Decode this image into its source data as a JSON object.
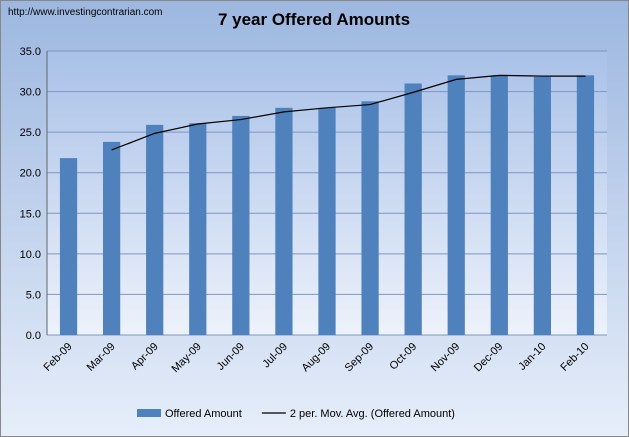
{
  "watermark": "http://www.investingcontrarian.com",
  "chart_data": {
    "type": "bar",
    "title": "7 year Offered Amounts",
    "categories": [
      "Feb-09",
      "Mar-09",
      "Apr-09",
      "May-09",
      "Jun-09",
      "Jul-09",
      "Aug-09",
      "Sep-09",
      "Oct-09",
      "Nov-09",
      "Dec-09",
      "Jan-10",
      "Feb-10"
    ],
    "series": [
      {
        "name": "Offered Amount",
        "type": "bar",
        "color": "#4f81bd",
        "values": [
          21.8,
          23.8,
          25.9,
          26.1,
          27.0,
          28.0,
          28.0,
          28.8,
          31.0,
          32.0,
          32.0,
          31.8,
          32.0
        ]
      },
      {
        "name": "2 per. Mov. Avg. (Offered Amount)",
        "type": "line",
        "color": "#000000",
        "values": [
          null,
          22.8,
          24.85,
          26.0,
          26.55,
          27.5,
          28.0,
          28.4,
          29.9,
          31.5,
          32.0,
          31.9,
          31.9
        ]
      }
    ],
    "ylim": [
      0,
      35
    ],
    "yticks": [
      {
        "value": 0,
        "label": "0.0"
      },
      {
        "value": 5,
        "label": "5.0"
      },
      {
        "value": 10,
        "label": "10.0"
      },
      {
        "value": 15,
        "label": "15.0"
      },
      {
        "value": 20,
        "label": "20.0"
      },
      {
        "value": 25,
        "label": "25.0"
      },
      {
        "value": 30,
        "label": "30.0"
      },
      {
        "value": 35,
        "label": "35.0"
      }
    ],
    "grid": true
  }
}
